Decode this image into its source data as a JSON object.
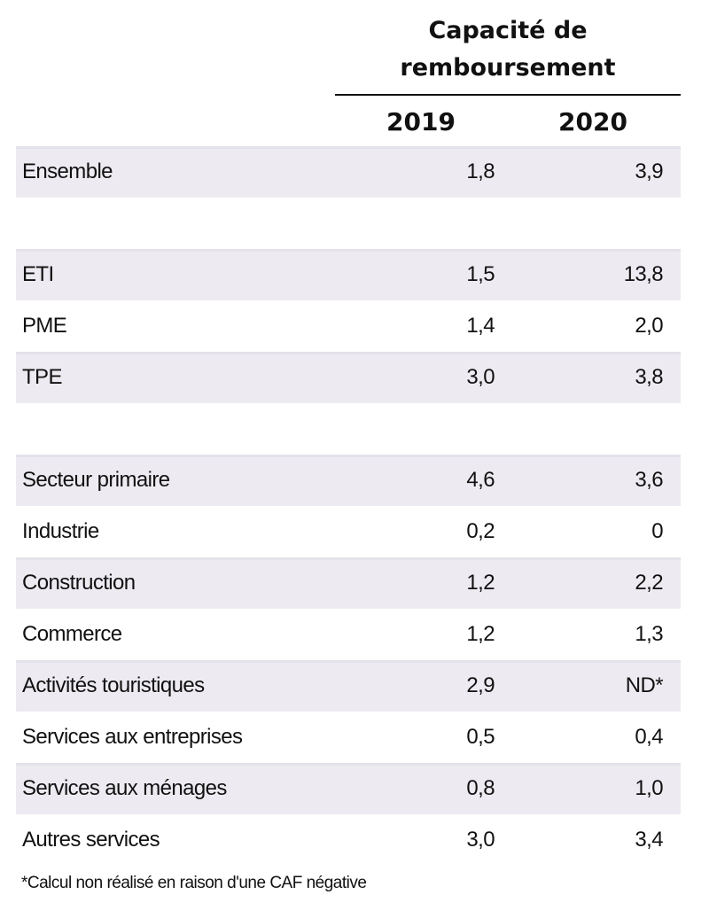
{
  "header": {
    "title_line1": "Capacité de",
    "title_line2": "remboursement",
    "years": [
      "2019",
      "2020"
    ]
  },
  "groups": [
    {
      "rows": [
        {
          "label": "Ensemble",
          "v2019": "1,8",
          "v2020": "3,9"
        }
      ]
    },
    {
      "rows": [
        {
          "label": "ETI",
          "v2019": "1,5",
          "v2020": "13,8"
        },
        {
          "label": "PME",
          "v2019": "1,4",
          "v2020": "2,0"
        },
        {
          "label": "TPE",
          "v2019": "3,0",
          "v2020": "3,8"
        }
      ]
    },
    {
      "rows": [
        {
          "label": "Secteur primaire",
          "v2019": "4,6",
          "v2020": "3,6"
        },
        {
          "label": "Industrie",
          "v2019": "0,2",
          "v2020": "0"
        },
        {
          "label": "Construction",
          "v2019": "1,2",
          "v2020": "2,2"
        },
        {
          "label": "Commerce",
          "v2019": "1,2",
          "v2020": "1,3"
        },
        {
          "label": "Activités touristiques",
          "v2019": "2,9",
          "v2020": "ND*"
        },
        {
          "label": "Services aux entreprises",
          "v2019": "0,5",
          "v2020": "0,4"
        },
        {
          "label": "Services aux ménages",
          "v2019": "0,8",
          "v2020": "1,0"
        },
        {
          "label": "Autres services",
          "v2019": "3,0",
          "v2020": "3,4"
        }
      ]
    }
  ],
  "footnote": "*Calcul non réalisé en raison d'une CAF négative"
}
